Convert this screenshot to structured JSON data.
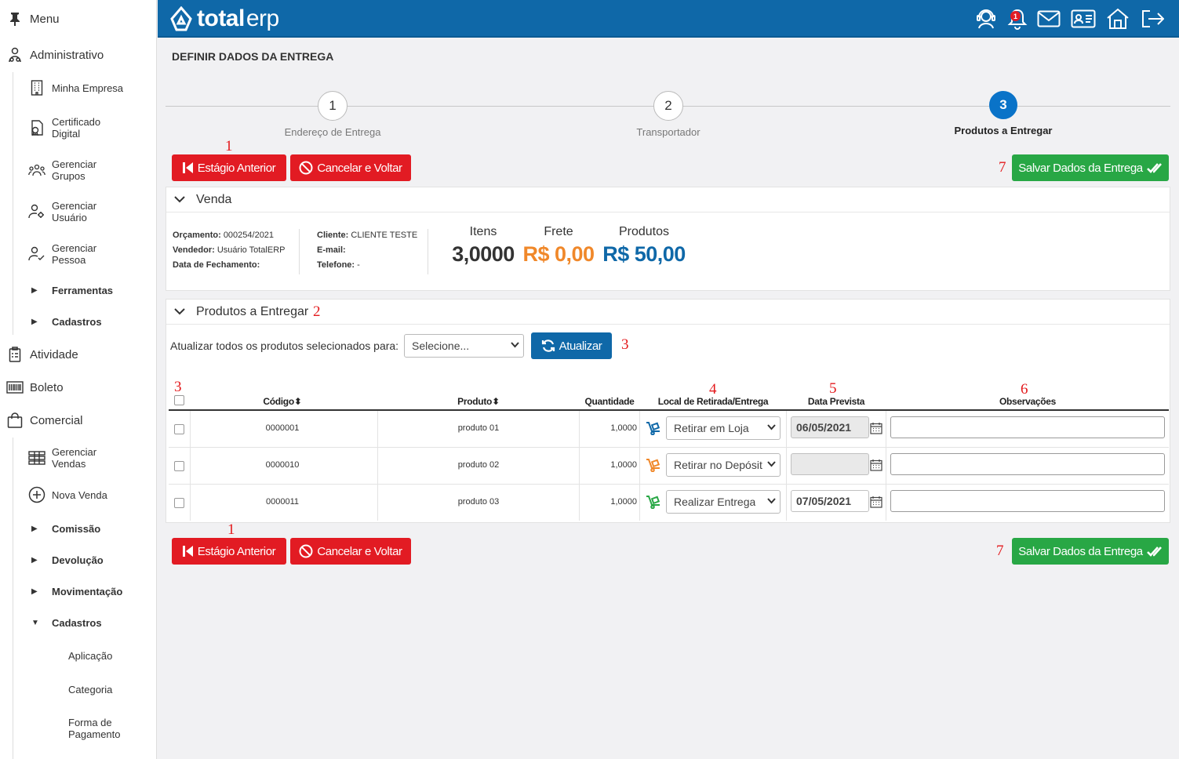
{
  "sidebar": {
    "menu_label": "Menu",
    "administrativo": "Administrativo",
    "admin_items": [
      {
        "label": "Minha Empresa",
        "icon": "building-icon"
      },
      {
        "label": "Certificado\nDigital",
        "icon": "certificate-icon"
      },
      {
        "label": "Gerenciar\nGrupos",
        "icon": "group-icon"
      },
      {
        "label": "Gerenciar\nUsuário",
        "icon": "user-gear-icon"
      },
      {
        "label": "Gerenciar\nPessoa",
        "icon": "user-check-icon"
      }
    ],
    "admin_groups": [
      "Ferramentas",
      "Cadastros"
    ],
    "atividade": "Atividade",
    "boleto": "Boleto",
    "comercial": "Comercial",
    "comercial_items": [
      {
        "label": "Gerenciar\nVendas",
        "icon": "sales-list-icon"
      },
      {
        "label": "Nova Venda",
        "icon": "plus-circle-icon"
      }
    ],
    "comercial_groups": [
      "Comissão",
      "Devolução",
      "Movimentação",
      "Cadastros"
    ],
    "cadastros_items": [
      "Aplicação",
      "Categoria",
      "Forma de\nPagamento"
    ]
  },
  "header": {
    "brand_bold": "total",
    "brand_light": "erp",
    "notification_count": "1",
    "icons": [
      "support-icon",
      "bell-icon",
      "mail-icon",
      "id-card-icon",
      "home-icon",
      "logout-icon"
    ]
  },
  "page_title": "DEFINIR DADOS DA ENTREGA",
  "stepper": {
    "steps": [
      {
        "number": "1",
        "label": "Endereço de Entrega"
      },
      {
        "number": "2",
        "label": "Transportador"
      },
      {
        "number": "3",
        "label": "Produtos a Entregar"
      }
    ],
    "active": 3
  },
  "actions": {
    "previous": "Estágio Anterior",
    "cancel": "Cancelar e Voltar",
    "save": "Salvar Dados da Entrega"
  },
  "annotations": {
    "a1": "1",
    "a2": "2",
    "a3": "3",
    "a4": "4",
    "a5": "5",
    "a6": "6",
    "a7": "7"
  },
  "venda": {
    "title": "Venda",
    "orcamento_label": "Orçamento:",
    "orcamento": "000254/2021",
    "vendedor_label": "Vendedor:",
    "vendedor": "Usuário TotalERP",
    "fechamento_label": "Data de Fechamento:",
    "fechamento": "",
    "cliente_label": "Cliente:",
    "cliente": "CLIENTE TESTE",
    "email_label": "E-mail:",
    "email": "",
    "telefone_label": "Telefone:",
    "telefone": "-",
    "stats": [
      {
        "label": "Itens",
        "value": "3,0000",
        "color": "#333333"
      },
      {
        "label": "Frete",
        "value": "R$ 0,00",
        "color": "#f0882a"
      },
      {
        "label": "Produtos",
        "value": "R$ 50,00",
        "color": "#0f68a8"
      }
    ]
  },
  "produtos": {
    "title": "Produtos a Entregar",
    "bulk_label": "Atualizar todos os produtos selecionados para:",
    "bulk_select": "Selecione...",
    "update_button": "Atualizar",
    "columns": {
      "codigo": "Código",
      "produto": "Produto",
      "quantidade": "Quantidade",
      "local": "Local de Retirada/Entrega",
      "data": "Data Prevista",
      "obs": "Observações"
    },
    "rows": [
      {
        "codigo": "0000001",
        "produto": "produto 01",
        "quantidade": "1,0000",
        "local": "Retirar em Loja",
        "truck_color": "#0f68a8",
        "data": "06/05/2021",
        "data_disabled": true
      },
      {
        "codigo": "0000010",
        "produto": "produto 02",
        "quantidade": "1,0000",
        "local": "Retirar no Depósito",
        "truck_color": "#f0882a",
        "data": "",
        "data_disabled": true
      },
      {
        "codigo": "0000011",
        "produto": "produto 03",
        "quantidade": "1,0000",
        "local": "Realizar Entrega",
        "truck_color": "#28a745",
        "data": "07/05/2021",
        "data_disabled": false
      }
    ]
  }
}
